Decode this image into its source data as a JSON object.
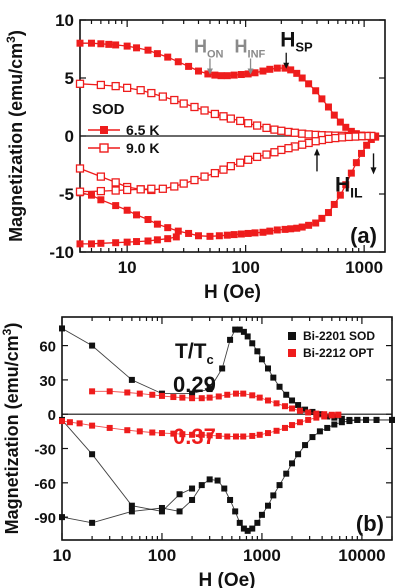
{
  "colors": {
    "red": "#ee1c1c",
    "black": "#111111",
    "annotation_gray": "#8a8a8a"
  },
  "chart_data": [
    {
      "panel": "a",
      "type": "line",
      "panel_label": "(a)",
      "xlabel": "H (Oe)",
      "ylabel": "Magnetization (emu/cm",
      "ylabel_sup": "3",
      "ylabel_close": ")",
      "xscale": "log",
      "xlim": [
        4,
        1500
      ],
      "ylim": [
        -10,
        10
      ],
      "xticks": [
        10,
        100,
        1000
      ],
      "xtick_labels": [
        "10",
        "100",
        "1000"
      ],
      "yticks": [
        -10,
        -5,
        0,
        5,
        10
      ],
      "ytick_labels": [
        "-10",
        "-5",
        "0",
        "5",
        "10"
      ],
      "legend_title": "SOD",
      "legend_position": "left",
      "annotations": [
        {
          "label": "H",
          "sub": "ON",
          "x": 50,
          "y": 5.3,
          "color": "gray"
        },
        {
          "label": "H",
          "sub": "INF",
          "x": 110,
          "y": 5.3,
          "color": "gray"
        },
        {
          "label": "H",
          "sub": "SP",
          "x": 220,
          "y": 5.8,
          "color": "black"
        },
        {
          "label": "H",
          "sub": "IL",
          "x": 400,
          "y": -1.5,
          "color": "black"
        },
        {
          "label": "",
          "sub": "",
          "x": 1200,
          "y": -1.5,
          "color": "black"
        }
      ],
      "series": [
        {
          "name": "6.5 K",
          "marker": "filled-square",
          "color": "#ee1c1c",
          "upper_x": [
            4,
            5,
            6,
            7,
            8,
            10,
            12,
            15,
            18,
            22,
            27,
            33,
            40,
            48,
            55,
            62,
            70,
            80,
            92,
            105,
            120,
            140,
            160,
            185,
            215,
            240,
            270,
            300,
            340,
            390,
            440,
            500,
            560,
            630,
            700,
            780,
            860,
            950,
            1050,
            1150,
            1250
          ],
          "upper_y": [
            8.0,
            8.0,
            7.95,
            7.9,
            7.85,
            7.75,
            7.6,
            7.4,
            7.1,
            6.8,
            6.4,
            6.0,
            5.6,
            5.35,
            5.25,
            5.2,
            5.2,
            5.25,
            5.3,
            5.35,
            5.45,
            5.6,
            5.75,
            5.85,
            5.85,
            5.7,
            5.4,
            5.0,
            4.5,
            3.9,
            3.2,
            2.5,
            1.8,
            1.2,
            0.75,
            0.4,
            0.2,
            0.08,
            0.0,
            -0.05,
            -0.1
          ],
          "lower_x": [
            1250,
            1150,
            1050,
            950,
            860,
            780,
            700,
            630,
            560,
            500,
            440,
            390,
            340,
            300,
            270,
            240,
            215,
            185,
            160,
            140,
            120,
            105,
            92,
            80,
            70,
            60,
            50,
            40,
            33,
            27,
            22,
            18,
            15,
            12,
            10,
            8,
            6,
            5,
            4
          ],
          "lower_y": [
            0.0,
            -0.3,
            -0.8,
            -1.5,
            -2.3,
            -3.2,
            -4.2,
            -5.1,
            -5.9,
            -6.6,
            -7.1,
            -7.5,
            -7.7,
            -7.85,
            -7.95,
            -8.0,
            -8.05,
            -8.1,
            -8.2,
            -8.3,
            -8.35,
            -8.4,
            -8.45,
            -8.5,
            -8.55,
            -8.6,
            -8.65,
            -8.6,
            -8.4,
            -8.2,
            -7.9,
            -7.6,
            -7.2,
            -6.8,
            -6.4,
            -6.0,
            -5.5,
            -5.1,
            -4.9
          ],
          "return_x": [
            4,
            5,
            6,
            8,
            10,
            12,
            15,
            18,
            22,
            26
          ],
          "return_y": [
            -9.3,
            -9.3,
            -9.25,
            -9.2,
            -9.15,
            -9.1,
            -9.05,
            -8.95,
            -8.85,
            -8.7
          ]
        },
        {
          "name": "9.0 K",
          "marker": "open-square",
          "color": "#ee1c1c",
          "upper_x": [
            4,
            6,
            8,
            10,
            13,
            16,
            20,
            25,
            30,
            37,
            45,
            55,
            65,
            75,
            90,
            105,
            125,
            150,
            175,
            200,
            230,
            260,
            300,
            340,
            390,
            440,
            500,
            570,
            650,
            740,
            840,
            950,
            1050,
            1150
          ],
          "upper_y": [
            4.5,
            4.4,
            4.3,
            4.15,
            3.95,
            3.7,
            3.4,
            3.1,
            2.8,
            2.5,
            2.2,
            1.9,
            1.7,
            1.5,
            1.3,
            1.1,
            0.9,
            0.7,
            0.55,
            0.45,
            0.35,
            0.28,
            0.2,
            0.14,
            0.1,
            0.07,
            0.05,
            0.03,
            0.02,
            0.01,
            0.0,
            0.0,
            0.0,
            0.0
          ],
          "lower_x": [
            1150,
            1050,
            950,
            840,
            740,
            650,
            570,
            500,
            440,
            390,
            340,
            300,
            260,
            230,
            200,
            175,
            150,
            125,
            105,
            90,
            75,
            65,
            55,
            45,
            37,
            30,
            25,
            20,
            16,
            13,
            10,
            8,
            6,
            4
          ],
          "lower_y": [
            0.0,
            0.0,
            -0.02,
            -0.05,
            -0.08,
            -0.12,
            -0.18,
            -0.25,
            -0.35,
            -0.45,
            -0.6,
            -0.75,
            -0.9,
            -1.05,
            -1.2,
            -1.4,
            -1.6,
            -1.8,
            -2.05,
            -2.3,
            -2.6,
            -2.9,
            -3.2,
            -3.5,
            -3.8,
            -4.1,
            -4.35,
            -4.55,
            -4.65,
            -4.6,
            -4.4,
            -4.0,
            -3.5,
            -2.8
          ],
          "return_x": [
            4,
            6,
            8,
            10,
            13,
            16
          ],
          "return_y": [
            -4.8,
            -4.75,
            -4.7,
            -4.65,
            -4.6,
            -4.55
          ]
        }
      ]
    },
    {
      "panel": "b",
      "type": "line",
      "panel_label": "(b)",
      "xlabel": "H (Oe)",
      "ylabel": "Magnetization (emu/cm",
      "ylabel_sup": "3",
      "ylabel_close": ")",
      "xscale": "log",
      "xlim": [
        10,
        20000
      ],
      "ylim": [
        -110,
        85
      ],
      "xticks": [
        10,
        100,
        1000,
        10000
      ],
      "xtick_labels": [
        "10",
        "100",
        "1000",
        "10000"
      ],
      "yticks": [
        -90,
        -60,
        -30,
        0,
        30,
        60
      ],
      "ytick_labels": [
        "-90",
        "-60",
        "-30",
        "0",
        "30",
        "60"
      ],
      "legend_position": "top-right",
      "ratio_title": "T/T",
      "ratio_title_sub": "c",
      "ratio_values": [
        {
          "label": "0.29",
          "color": "black"
        },
        {
          "label": "0.37",
          "color": "red"
        }
      ],
      "series": [
        {
          "name": "Bi-2201 SOD",
          "marker": "filled-square",
          "color": "#111111",
          "points_x": [
            10,
            20,
            50,
            100,
            200,
            300,
            400,
            480,
            540,
            600,
            660,
            720,
            800,
            900,
            1000,
            1150,
            1300,
            1500,
            1750,
            2000,
            2300,
            2700,
            3200,
            3800,
            4500,
            5300,
            6300,
            7500,
            9000,
            11000,
            14000,
            20000
          ],
          "points_y": [
            75,
            60,
            30,
            18,
            18,
            22,
            40,
            65,
            74,
            74,
            72,
            68,
            62,
            55,
            48,
            40,
            32,
            24,
            17,
            12,
            8,
            4,
            2,
            0,
            -2,
            -3,
            -4,
            -5,
            -5,
            -5,
            -5,
            -5
          ],
          "lower_x": [
            20000,
            14000,
            11000,
            9000,
            7500,
            6300,
            5300,
            4500,
            3800,
            3200,
            2700,
            2300,
            2000,
            1750,
            1500,
            1300,
            1150,
            1000,
            900,
            800,
            720,
            660,
            600,
            540,
            480,
            420,
            360,
            300,
            250,
            200,
            150,
            100,
            50,
            20,
            10
          ],
          "lower_y": [
            -5,
            -5,
            -5,
            -5,
            -6,
            -7,
            -9,
            -12,
            -15,
            -20,
            -27,
            -35,
            -43,
            -52,
            -62,
            -71,
            -80,
            -88,
            -95,
            -100,
            -102,
            -100,
            -95,
            -85,
            -75,
            -65,
            -58,
            -57,
            -62,
            -75,
            -85,
            -82,
            -85,
            -95,
            -90
          ],
          "extra_x": [
            10,
            20,
            50,
            100,
            150,
            200
          ],
          "extra_y": [
            -5,
            -35,
            -80,
            -85,
            -70,
            -65
          ]
        },
        {
          "name": "Bi-2212 OPT",
          "marker": "filled-square",
          "color": "#ee1c1c",
          "points_x": [
            20,
            30,
            45,
            60,
            80,
            100,
            130,
            160,
            200,
            250,
            300,
            370,
            450,
            550,
            650,
            800,
            950,
            1150,
            1400,
            1700,
            2000,
            2400,
            2900,
            3500,
            4200,
            5000,
            5800
          ],
          "points_y": [
            20,
            20,
            19,
            18,
            17,
            16,
            15,
            14.5,
            14,
            14,
            14.5,
            15.5,
            17,
            18,
            18,
            16.5,
            14.5,
            12,
            9.5,
            7,
            5,
            3,
            1.5,
            0.5,
            0,
            -0.5,
            -0.5
          ],
          "lower_x": [
            5800,
            5000,
            4200,
            3500,
            2900,
            2400,
            2000,
            1700,
            1400,
            1150,
            950,
            800,
            650,
            550,
            450,
            370,
            300,
            250,
            200,
            160,
            130,
            100,
            80,
            60,
            45,
            30,
            20,
            15,
            12,
            10
          ],
          "lower_y": [
            -0.5,
            -1,
            -2,
            -3,
            -5,
            -7,
            -9.5,
            -12,
            -14.5,
            -16.5,
            -18,
            -19,
            -19.5,
            -19.5,
            -19.5,
            -19,
            -18.5,
            -18,
            -18,
            -17.5,
            -17,
            -16.5,
            -16,
            -15,
            -14,
            -12,
            -10,
            -8,
            -7,
            -6
          ]
        }
      ]
    }
  ]
}
